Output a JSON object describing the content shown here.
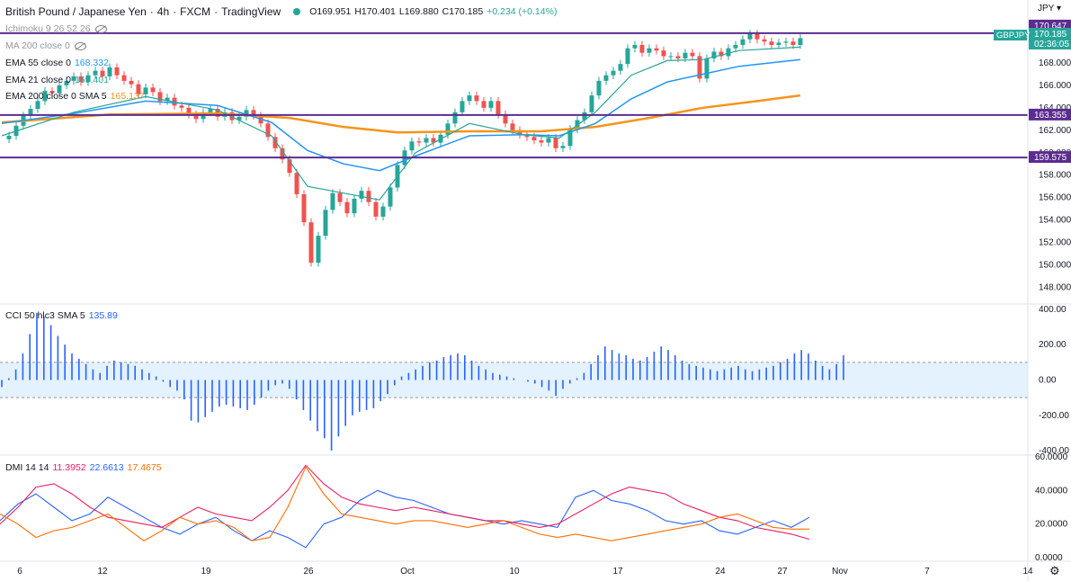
{
  "header": {
    "symbol": "British Pound / Japanese Yen",
    "interval": "4h",
    "exchange": "FXCM",
    "platform": "TradingView",
    "open": "O169.951",
    "high": "H170.401",
    "low": "L169.880",
    "close": "C170.185",
    "change": "+0.234 (+0.14%)"
  },
  "currency": "JPY",
  "legends": {
    "ichimoku": "Ichimoku 9 26 52 26",
    "ma200": "MA 200 close 0",
    "ema55": {
      "label": "EMA 55 close 0",
      "value": "168.332"
    },
    "ema21": {
      "label": "EMA 21 close 0",
      "value": "169.401"
    },
    "ema200": {
      "label": "EMA 200 close 0 SMA 5",
      "value": "165.137"
    },
    "cci": {
      "label": "CCI 50 hlc3 SMA 5",
      "value": "135.89"
    },
    "dmi": {
      "label": "DMI 14 14",
      "v1": "11.3952",
      "v2": "22.6613",
      "v3": "17.4675"
    }
  },
  "price_tags": {
    "level_top": "170.647",
    "last": "170.185",
    "symbol_tag": "GBPJPY",
    "countdown": "02:36:05",
    "level_mid": "163.355",
    "level_low": "159.575"
  },
  "colors": {
    "up": "#26a69a",
    "down": "#ef5350",
    "ema21": "#26a69a",
    "ema55": "#2196f3",
    "ema200": "#f7931a",
    "level": "#5b2c91",
    "cci": "#2962ff",
    "dmi_plus": "#2962ff",
    "dmi_minus": "#e91e63",
    "adx": "#ff6d00"
  },
  "chart_data": {
    "type": "candlestick",
    "price_axis_ticks": [
      "168.000",
      "166.000",
      "164.000",
      "162.000",
      "160.000",
      "158.000",
      "156.000",
      "154.000",
      "152.000",
      "150.000",
      "148.000"
    ],
    "price_ylim": [
      147,
      172
    ],
    "time_axis_ticks": [
      "6",
      "12",
      "19",
      "26",
      "Oct",
      "10",
      "17",
      "24",
      "27",
      "Nov",
      "7",
      "14"
    ],
    "horizontal_levels": [
      170.647,
      163.355,
      159.575
    ],
    "candles_close_path": [
      [
        0,
        161.2
      ],
      [
        4,
        161.5
      ],
      [
        8,
        162.4
      ],
      [
        12,
        163.3
      ],
      [
        16,
        163.9
      ],
      [
        20,
        164.6
      ],
      [
        24,
        165.5
      ],
      [
        28,
        165.3
      ],
      [
        32,
        166.0
      ],
      [
        36,
        166.4
      ],
      [
        40,
        166.8
      ],
      [
        44,
        166.3
      ],
      [
        48,
        166.9
      ],
      [
        52,
        167.3
      ],
      [
        56,
        166.8
      ],
      [
        60,
        167.6
      ],
      [
        64,
        166.9
      ],
      [
        68,
        166.4
      ],
      [
        72,
        166.1
      ],
      [
        76,
        165.2
      ],
      [
        80,
        165.8
      ],
      [
        84,
        165.4
      ],
      [
        88,
        164.6
      ],
      [
        92,
        164.9
      ],
      [
        96,
        164.2
      ],
      [
        100,
        164.0
      ],
      [
        104,
        163.4
      ],
      [
        108,
        163.0
      ],
      [
        112,
        163.6
      ],
      [
        116,
        163.9
      ],
      [
        120,
        163.2
      ],
      [
        124,
        163.6
      ],
      [
        128,
        162.9
      ],
      [
        132,
        163.2
      ],
      [
        136,
        163.8
      ],
      [
        140,
        163.3
      ],
      [
        144,
        162.6
      ],
      [
        148,
        161.4
      ],
      [
        152,
        160.4
      ],
      [
        156,
        159.4
      ],
      [
        160,
        158.2
      ],
      [
        164,
        156.3
      ],
      [
        168,
        153.8
      ],
      [
        172,
        150.2
      ],
      [
        176,
        152.6
      ],
      [
        180,
        154.9
      ],
      [
        184,
        156.4
      ],
      [
        188,
        155.6
      ],
      [
        192,
        154.6
      ],
      [
        196,
        155.9
      ],
      [
        200,
        156.6
      ],
      [
        204,
        155.6
      ],
      [
        208,
        154.3
      ],
      [
        212,
        155.2
      ],
      [
        216,
        156.9
      ],
      [
        220,
        158.9
      ],
      [
        224,
        160.2
      ],
      [
        228,
        161.0
      ],
      [
        232,
        160.9
      ],
      [
        236,
        161.3
      ],
      [
        240,
        160.9
      ],
      [
        244,
        161.6
      ],
      [
        248,
        162.6
      ],
      [
        252,
        163.6
      ],
      [
        256,
        164.6
      ],
      [
        260,
        165.1
      ],
      [
        264,
        164.6
      ],
      [
        268,
        164.0
      ],
      [
        272,
        164.6
      ],
      [
        276,
        163.4
      ],
      [
        280,
        162.6
      ],
      [
        284,
        162.0
      ],
      [
        288,
        161.6
      ],
      [
        292,
        161.4
      ],
      [
        296,
        161.1
      ],
      [
        300,
        160.9
      ],
      [
        304,
        161.3
      ],
      [
        308,
        160.4
      ],
      [
        312,
        160.6
      ],
      [
        316,
        162.1
      ],
      [
        320,
        162.9
      ],
      [
        324,
        163.6
      ],
      [
        328,
        165.1
      ],
      [
        332,
        166.4
      ],
      [
        336,
        166.9
      ],
      [
        340,
        167.3
      ],
      [
        344,
        167.9
      ],
      [
        348,
        169.3
      ],
      [
        352,
        169.6
      ],
      [
        356,
        168.9
      ],
      [
        360,
        169.3
      ],
      [
        364,
        169.1
      ],
      [
        368,
        168.6
      ],
      [
        372,
        168.6
      ],
      [
        376,
        168.4
      ],
      [
        380,
        168.9
      ],
      [
        384,
        168.6
      ],
      [
        388,
        166.6
      ],
      [
        392,
        168.4
      ],
      [
        396,
        169.0
      ],
      [
        400,
        168.6
      ],
      [
        404,
        169.3
      ],
      [
        408,
        169.6
      ],
      [
        412,
        170.1
      ],
      [
        416,
        170.6
      ],
      [
        420,
        170.1
      ],
      [
        424,
        169.9
      ],
      [
        428,
        169.6
      ],
      [
        432,
        169.8
      ],
      [
        436,
        169.9
      ],
      [
        440,
        169.6
      ],
      [
        444,
        170.2
      ]
    ],
    "ema21_path": [
      [
        0,
        161.5
      ],
      [
        40,
        163.6
      ],
      [
        80,
        165.0
      ],
      [
        120,
        163.8
      ],
      [
        150,
        161.5
      ],
      [
        170,
        157.0
      ],
      [
        190,
        156.4
      ],
      [
        210,
        155.8
      ],
      [
        230,
        160.0
      ],
      [
        260,
        162.6
      ],
      [
        290,
        161.6
      ],
      [
        310,
        161.3
      ],
      [
        330,
        163.6
      ],
      [
        350,
        166.9
      ],
      [
        370,
        168.2
      ],
      [
        390,
        168.3
      ],
      [
        410,
        169.1
      ],
      [
        444,
        169.4
      ]
    ],
    "ema55_path": [
      [
        0,
        162.6
      ],
      [
        40,
        163.5
      ],
      [
        80,
        164.6
      ],
      [
        120,
        164.2
      ],
      [
        150,
        162.7
      ],
      [
        170,
        160.2
      ],
      [
        190,
        159.0
      ],
      [
        210,
        158.4
      ],
      [
        230,
        159.7
      ],
      [
        260,
        161.5
      ],
      [
        290,
        161.6
      ],
      [
        310,
        161.5
      ],
      [
        330,
        162.6
      ],
      [
        350,
        164.8
      ],
      [
        370,
        166.3
      ],
      [
        390,
        167.0
      ],
      [
        410,
        167.7
      ],
      [
        444,
        168.3
      ]
    ],
    "ema200_path": [
      [
        0,
        162.7
      ],
      [
        60,
        163.4
      ],
      [
        120,
        163.5
      ],
      [
        160,
        163.1
      ],
      [
        190,
        162.3
      ],
      [
        220,
        161.8
      ],
      [
        260,
        161.9
      ],
      [
        300,
        161.9
      ],
      [
        330,
        162.3
      ],
      [
        360,
        163.1
      ],
      [
        390,
        164.0
      ],
      [
        420,
        164.6
      ],
      [
        444,
        165.1
      ]
    ],
    "cci_axis_ticks": [
      "400.00",
      "200.00",
      "0.00",
      "-200.00",
      "-400.00"
    ],
    "cci_ylim": [
      -420,
      420
    ],
    "cci_band": [
      -100,
      100
    ],
    "cci_values": [
      -40,
      10,
      60,
      150,
      260,
      380,
      360,
      310,
      250,
      200,
      150,
      120,
      90,
      60,
      40,
      80,
      110,
      100,
      90,
      80,
      60,
      40,
      20,
      -10,
      -40,
      -60,
      -110,
      -230,
      -240,
      -210,
      -180,
      -150,
      -140,
      -150,
      -160,
      -170,
      -140,
      -100,
      -60,
      -30,
      -20,
      -50,
      -110,
      -170,
      -230,
      -290,
      -330,
      -400,
      -320,
      -260,
      -200,
      -180,
      -170,
      -160,
      -120,
      -80,
      -30,
      20,
      40,
      60,
      80,
      100,
      110,
      130,
      140,
      150,
      140,
      110,
      80,
      60,
      40,
      30,
      20,
      10,
      0,
      -10,
      -20,
      -40,
      -60,
      -90,
      -50,
      -20,
      10,
      40,
      90,
      140,
      190,
      170,
      150,
      140,
      120,
      110,
      130,
      160,
      190,
      170,
      140,
      110,
      90,
      80,
      70,
      60,
      50,
      60,
      70,
      80,
      60,
      50,
      60,
      70,
      80,
      100,
      120,
      150,
      170,
      150,
      110,
      80,
      60,
      90,
      140
    ],
    "dmi_axis_ticks": [
      "60.0000",
      "40.0000",
      "20.0000",
      "0.0000"
    ],
    "dmi_ylim": [
      0,
      60
    ],
    "dmi_plus": [
      [
        0,
        22
      ],
      [
        20,
        32
      ],
      [
        40,
        38
      ],
      [
        60,
        30
      ],
      [
        80,
        22
      ],
      [
        100,
        26
      ],
      [
        120,
        36
      ],
      [
        140,
        30
      ],
      [
        160,
        24
      ],
      [
        180,
        18
      ],
      [
        200,
        14
      ],
      [
        220,
        20
      ],
      [
        240,
        24
      ],
      [
        260,
        16
      ],
      [
        280,
        10
      ],
      [
        300,
        16
      ],
      [
        320,
        12
      ],
      [
        340,
        6
      ],
      [
        360,
        20
      ],
      [
        380,
        24
      ],
      [
        400,
        34
      ],
      [
        420,
        40
      ],
      [
        440,
        36
      ],
      [
        460,
        34
      ],
      [
        480,
        30
      ],
      [
        500,
        26
      ],
      [
        520,
        24
      ],
      [
        540,
        22
      ],
      [
        560,
        20
      ],
      [
        580,
        22
      ],
      [
        600,
        20
      ],
      [
        620,
        18
      ],
      [
        640,
        36
      ],
      [
        660,
        40
      ],
      [
        680,
        34
      ],
      [
        700,
        32
      ],
      [
        720,
        28
      ],
      [
        740,
        22
      ],
      [
        760,
        20
      ],
      [
        780,
        22
      ],
      [
        800,
        16
      ],
      [
        820,
        14
      ],
      [
        840,
        18
      ],
      [
        860,
        22
      ],
      [
        880,
        18
      ],
      [
        900,
        24
      ]
    ],
    "dmi_minus": [
      [
        0,
        20
      ],
      [
        20,
        30
      ],
      [
        40,
        42
      ],
      [
        60,
        44
      ],
      [
        80,
        38
      ],
      [
        100,
        30
      ],
      [
        120,
        24
      ],
      [
        140,
        22
      ],
      [
        160,
        20
      ],
      [
        180,
        18
      ],
      [
        200,
        24
      ],
      [
        220,
        30
      ],
      [
        240,
        26
      ],
      [
        260,
        24
      ],
      [
        280,
        22
      ],
      [
        300,
        30
      ],
      [
        320,
        40
      ],
      [
        340,
        55
      ],
      [
        360,
        44
      ],
      [
        380,
        36
      ],
      [
        400,
        32
      ],
      [
        420,
        30
      ],
      [
        440,
        28
      ],
      [
        460,
        30
      ],
      [
        480,
        28
      ],
      [
        500,
        26
      ],
      [
        520,
        24
      ],
      [
        540,
        22
      ],
      [
        560,
        22
      ],
      [
        580,
        20
      ],
      [
        600,
        18
      ],
      [
        620,
        20
      ],
      [
        640,
        26
      ],
      [
        660,
        32
      ],
      [
        680,
        38
      ],
      [
        700,
        42
      ],
      [
        720,
        40
      ],
      [
        740,
        38
      ],
      [
        760,
        32
      ],
      [
        780,
        28
      ],
      [
        800,
        24
      ],
      [
        820,
        22
      ],
      [
        840,
        18
      ],
      [
        860,
        16
      ],
      [
        880,
        14
      ],
      [
        900,
        11
      ]
    ],
    "adx": [
      [
        0,
        26
      ],
      [
        20,
        20
      ],
      [
        40,
        12
      ],
      [
        60,
        16
      ],
      [
        80,
        18
      ],
      [
        100,
        22
      ],
      [
        120,
        26
      ],
      [
        140,
        18
      ],
      [
        160,
        10
      ],
      [
        180,
        16
      ],
      [
        200,
        24
      ],
      [
        220,
        20
      ],
      [
        240,
        22
      ],
      [
        260,
        18
      ],
      [
        280,
        10
      ],
      [
        300,
        12
      ],
      [
        320,
        30
      ],
      [
        340,
        54
      ],
      [
        360,
        38
      ],
      [
        380,
        26
      ],
      [
        400,
        24
      ],
      [
        420,
        22
      ],
      [
        440,
        20
      ],
      [
        460,
        22
      ],
      [
        480,
        22
      ],
      [
        500,
        20
      ],
      [
        520,
        18
      ],
      [
        540,
        20
      ],
      [
        560,
        22
      ],
      [
        580,
        18
      ],
      [
        600,
        14
      ],
      [
        620,
        12
      ],
      [
        640,
        14
      ],
      [
        660,
        12
      ],
      [
        680,
        10
      ],
      [
        700,
        12
      ],
      [
        720,
        14
      ],
      [
        740,
        16
      ],
      [
        760,
        18
      ],
      [
        780,
        20
      ],
      [
        800,
        24
      ],
      [
        820,
        26
      ],
      [
        840,
        22
      ],
      [
        860,
        18
      ],
      [
        880,
        17
      ],
      [
        900,
        17
      ]
    ]
  }
}
